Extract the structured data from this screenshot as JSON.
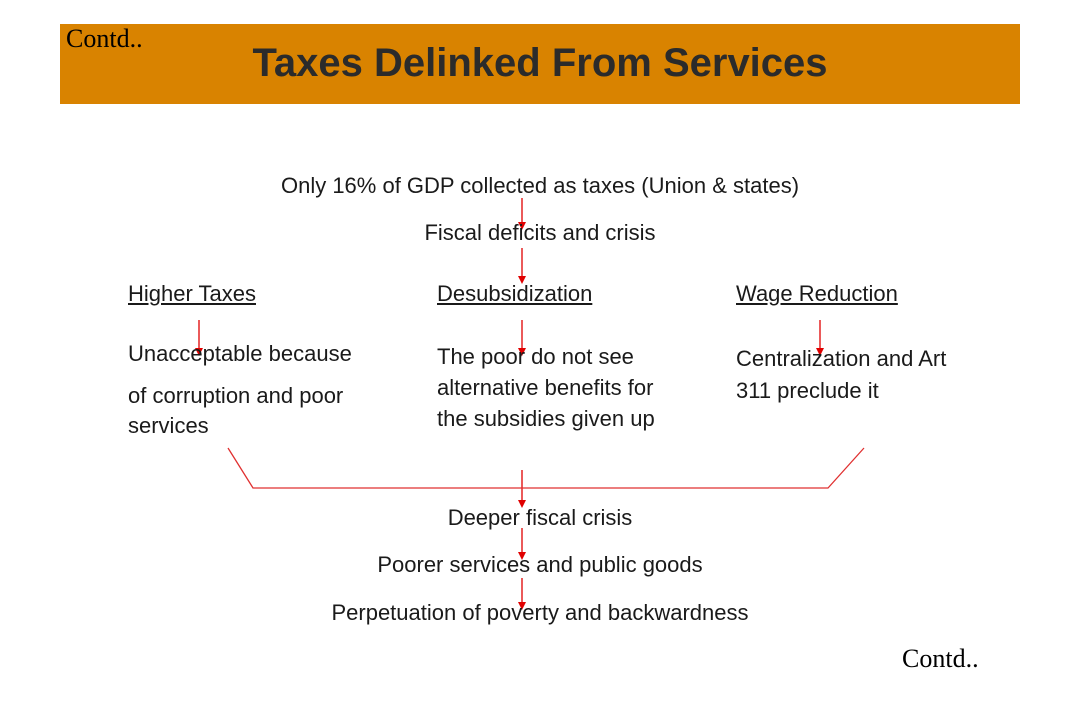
{
  "header": {
    "contd": "Contd..",
    "title": "Taxes Delinked From Services"
  },
  "flow_top": [
    "Only 16% of GDP collected as taxes (Union & states)",
    "Fiscal deficits and crisis"
  ],
  "branches": [
    {
      "heading": "Higher Taxes",
      "line1": "Unacceptable because",
      "line2": "of corruption and poor",
      "line3": "services"
    },
    {
      "heading": "Desubsidization",
      "line1": "The poor do not see",
      "line2": "alternative benefits for",
      "line3": "the subsidies given up"
    },
    {
      "heading": "Wage Reduction",
      "line1": "Centralization and Art",
      "line2": "311 preclude it"
    }
  ],
  "flow_bottom": [
    "Deeper fiscal crisis",
    "Poorer services and public goods",
    "Perpetuation of poverty and backwardness"
  ],
  "footer": {
    "contd": "Contd.."
  },
  "colors": {
    "title_bar": "#d98300",
    "arrow": "#e00000",
    "bracket": "#e03030",
    "text": "#1a1a1a"
  }
}
